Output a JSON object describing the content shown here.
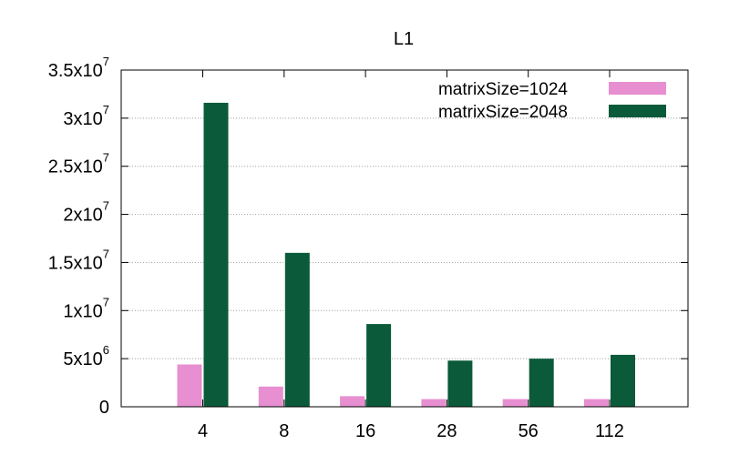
{
  "chart_data": {
    "type": "bar",
    "title": "L1",
    "xlabel": "",
    "ylabel": "",
    "categories": [
      "4",
      "8",
      "16",
      "28",
      "56",
      "112"
    ],
    "series": [
      {
        "name": "matrixSize=1024",
        "color": "#e78fd0",
        "values": [
          4400000,
          2100000,
          1100000,
          800000,
          800000,
          800000
        ]
      },
      {
        "name": "matrixSize=2048",
        "color": "#0b5a3a",
        "values": [
          31600000,
          16000000,
          8600000,
          4800000,
          5000000,
          5400000
        ]
      }
    ],
    "ylim": [
      0,
      35000000
    ],
    "yticks": [
      {
        "value": 0,
        "base": "0",
        "exp": ""
      },
      {
        "value": 5000000,
        "base": "5x10",
        "exp": "6"
      },
      {
        "value": 10000000,
        "base": "1x10",
        "exp": "7"
      },
      {
        "value": 15000000,
        "base": "1.5x10",
        "exp": "7"
      },
      {
        "value": 20000000,
        "base": "2x10",
        "exp": "7"
      },
      {
        "value": 25000000,
        "base": "2.5x10",
        "exp": "7"
      },
      {
        "value": 30000000,
        "base": "3x10",
        "exp": "7"
      },
      {
        "value": 35000000,
        "base": "3.5x10",
        "exp": "7"
      }
    ],
    "grid": true,
    "legend_position": "top-right"
  }
}
